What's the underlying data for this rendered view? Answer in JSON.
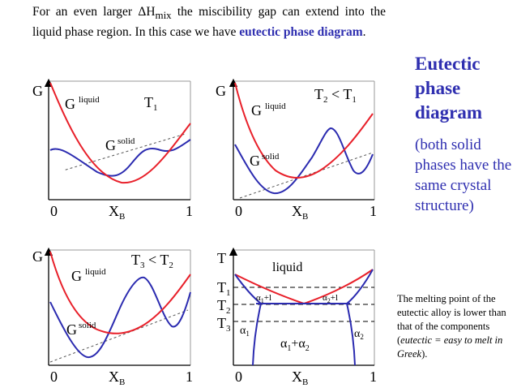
{
  "intro": {
    "part1": "For an even larger ΔH",
    "mix": "mix",
    "part2": " the miscibility gap can extend into the liquid phase region.  In this case we have ",
    "highlight": "eutectic phase diagram",
    "end": "."
  },
  "side": {
    "title": "Eutectic phase diagram",
    "note": "(both solid phases have the same crystal structure)"
  },
  "melting_note": {
    "text1": "The melting point of the eutectic alloy is lower than that of the components (",
    "italic": "eutectic = easy to melt in Greek",
    "text2": ")."
  },
  "panels": {
    "p1": {
      "y_label": "G",
      "temp": "T",
      "temp_sub": "1",
      "liquid_label": "G",
      "liquid_sup": "liquid",
      "solid_label": "G",
      "solid_sup": "solid",
      "x0": "0",
      "x_label": "X",
      "x_sub": "B",
      "x1": "1"
    },
    "p2": {
      "y_label": "G",
      "temp_a": "T",
      "temp_a_sub": "2",
      "temp_op": " < ",
      "temp_b": "T",
      "temp_b_sub": "1",
      "liquid_label": "G",
      "liquid_sup": "liquid",
      "solid_label": "G",
      "solid_sup": "solid",
      "x0": "0",
      "x_label": "X",
      "x_sub": "B",
      "x1": "1"
    },
    "p3": {
      "y_label": "G",
      "temp_a": "T",
      "temp_a_sub": "3",
      "temp_op": " < ",
      "temp_b": "T",
      "temp_b_sub": "2",
      "liquid_label": "G",
      "liquid_sup": "liquid",
      "solid_label": "G",
      "solid_sup": "solid",
      "x0": "0",
      "x_label": "X",
      "x_sub": "B",
      "x1": "1"
    },
    "p4": {
      "y_label": "T",
      "liquid": "liquid",
      "t1": "T",
      "t1_sub": "1",
      "t2": "T",
      "t2_sub": "2",
      "t3": "T",
      "t3_sub": "3",
      "a1": "α",
      "a1_sub": "1",
      "a2": "α",
      "a2_sub": "2",
      "a1l": "α",
      "a1l_sub": "1",
      "a1l_tail": "+l",
      "a2l": "α",
      "a2l_sub": "2",
      "a2l_tail": "+l",
      "a1a2_a": "α",
      "a1a2_a_sub": "1",
      "a1a2_plus": "+α",
      "a1a2_b_sub": "2",
      "x0": "0",
      "x_label": "X",
      "x_sub": "B",
      "x1": "1"
    }
  },
  "colors": {
    "liquid_curve": "#e8202a",
    "solid_curve": "#2b2bb0",
    "highlight_text": "#2f2fb0"
  }
}
